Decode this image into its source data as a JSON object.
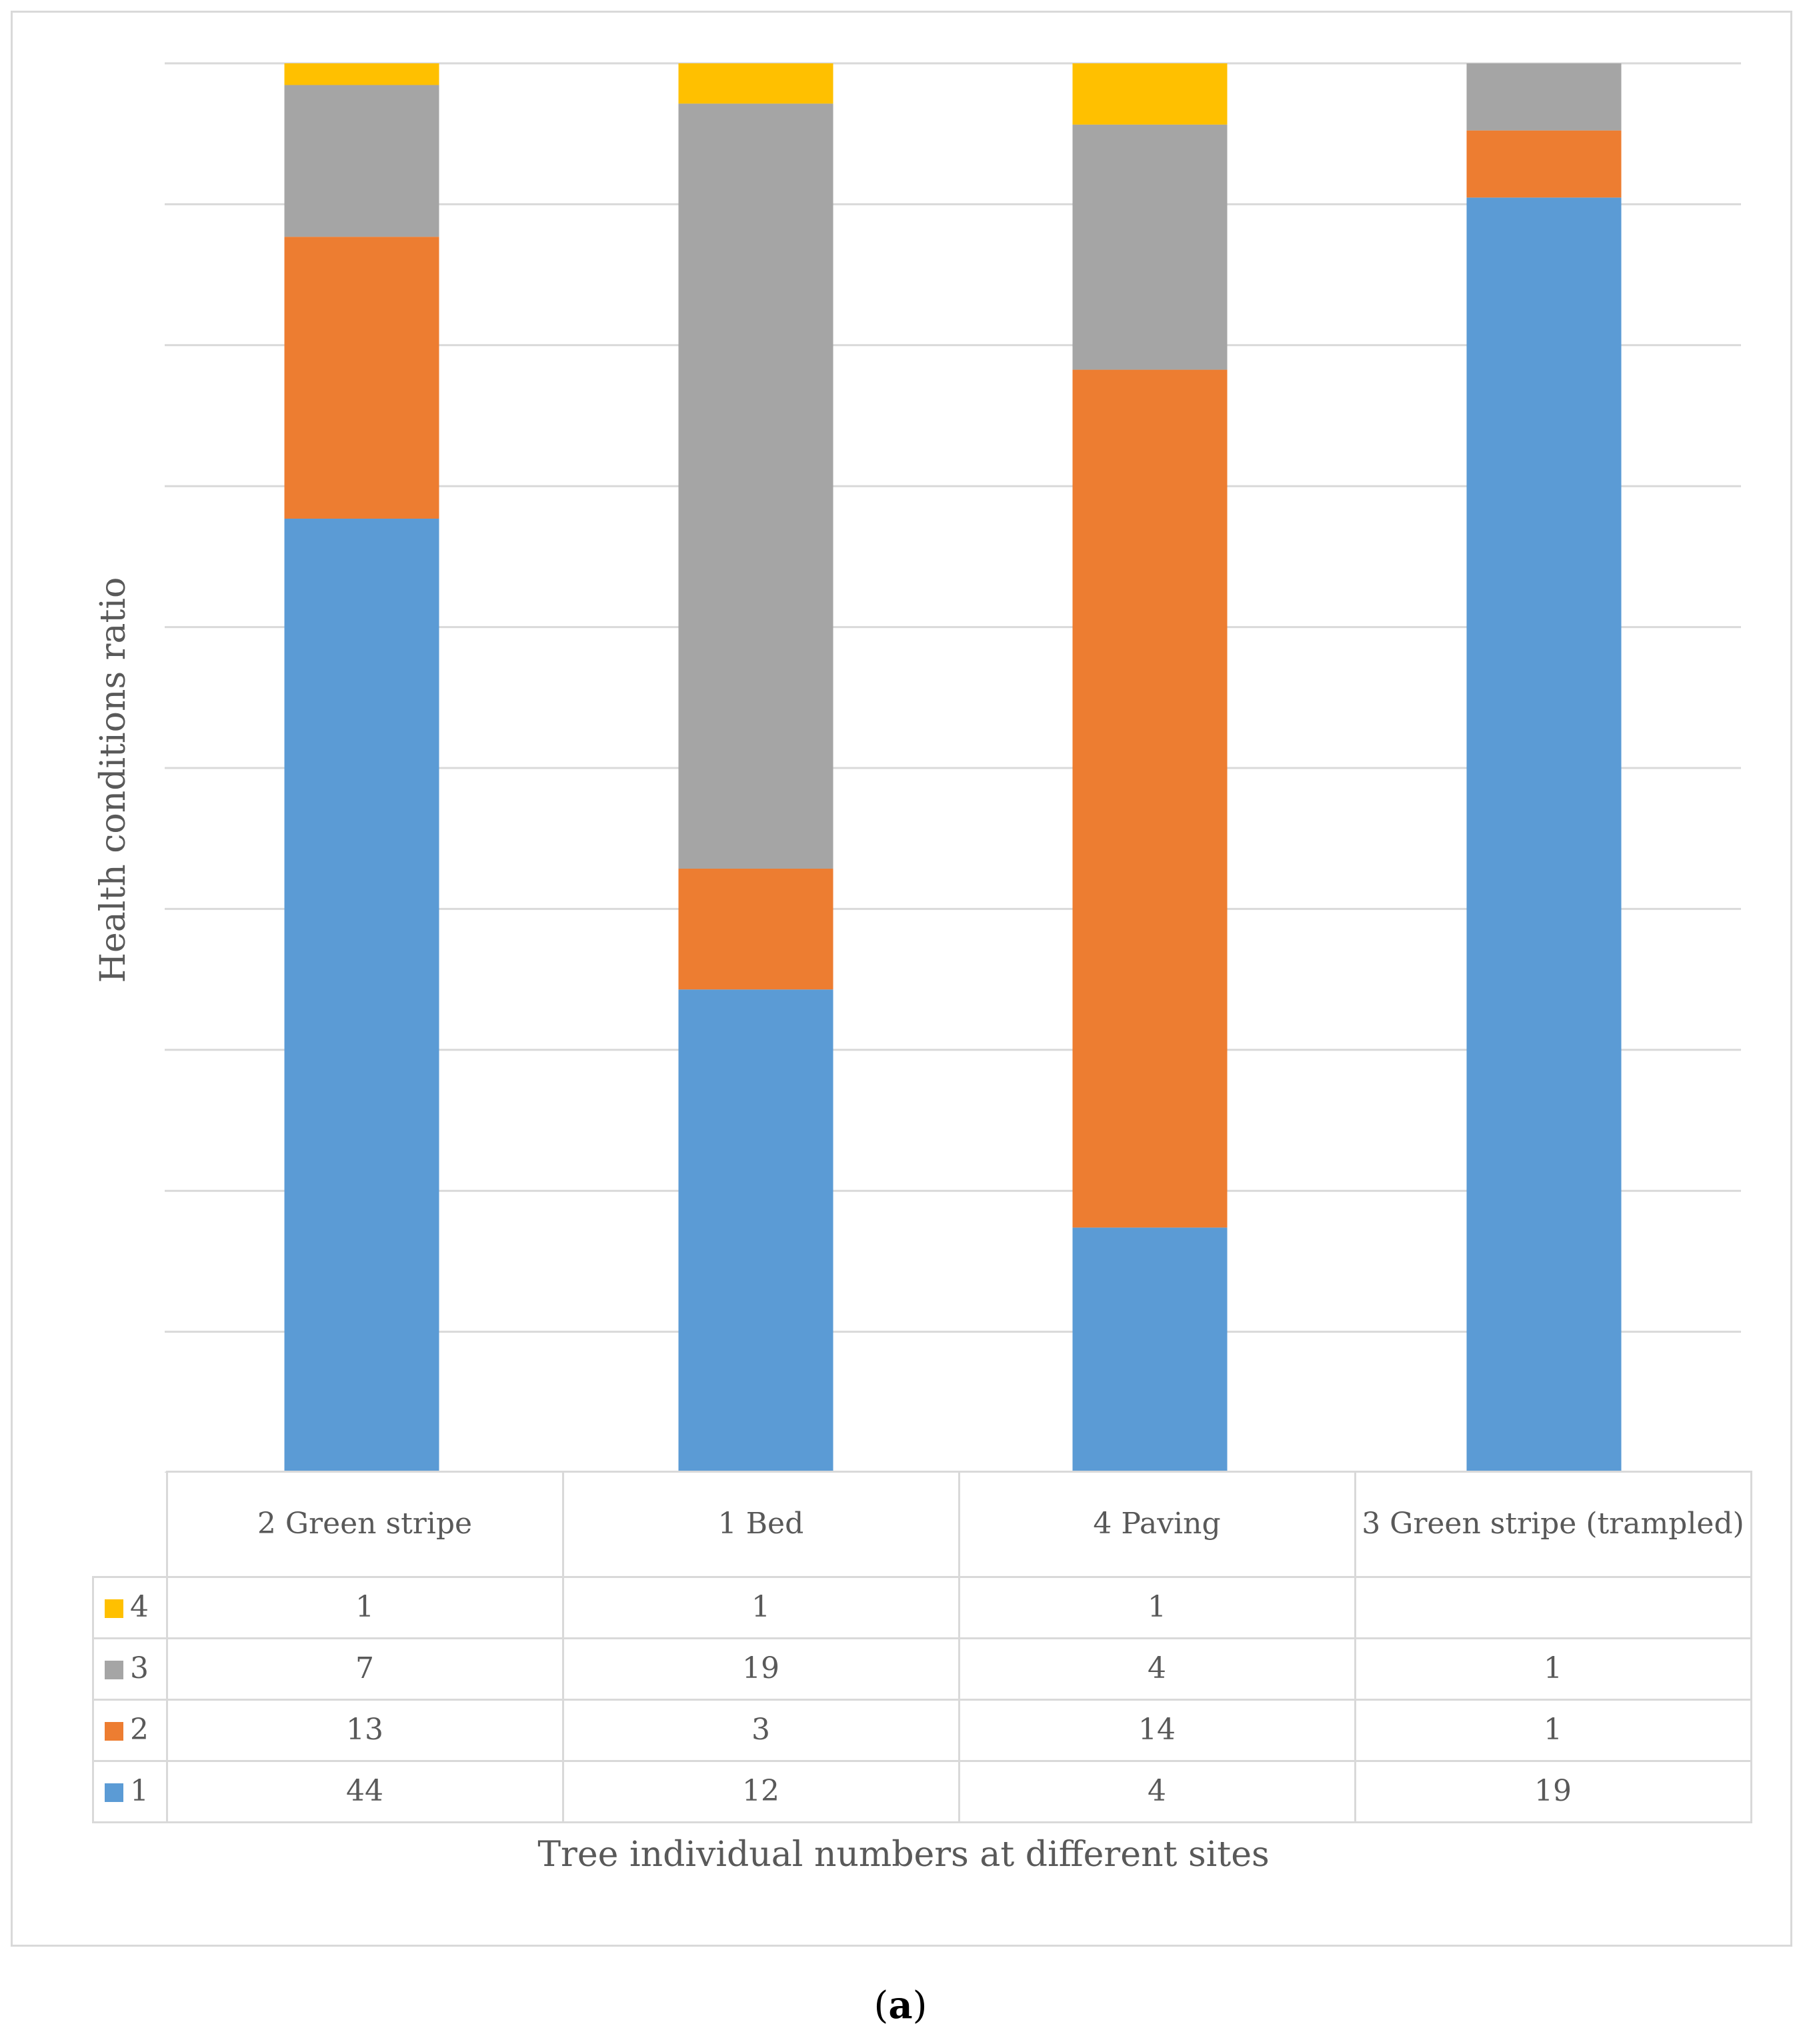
{
  "chart_data": {
    "type": "bar",
    "stacked": "percent",
    "title": "",
    "ylabel": "Health conditions ratio",
    "xlabel": "Tree individual numbers at different sites",
    "ylim": [
      0,
      1
    ],
    "grid": true,
    "categories": [
      "2 Green stripe",
      "1 Bed",
      "4 Paving",
      "3 Green stripe (trampled)"
    ],
    "series": [
      {
        "name": "1",
        "color": "#5b9bd5",
        "values": [
          44,
          12,
          4,
          19
        ]
      },
      {
        "name": "2",
        "color": "#ed7d31",
        "values": [
          13,
          3,
          14,
          1
        ]
      },
      {
        "name": "3",
        "color": "#a5a5a5",
        "values": [
          7,
          19,
          4,
          1
        ]
      },
      {
        "name": "4",
        "color": "#ffc000",
        "values": [
          1,
          1,
          1,
          null
        ]
      }
    ],
    "legend": "data-table"
  },
  "caption": {
    "open": "(",
    "letter": "a",
    "close": ")"
  }
}
